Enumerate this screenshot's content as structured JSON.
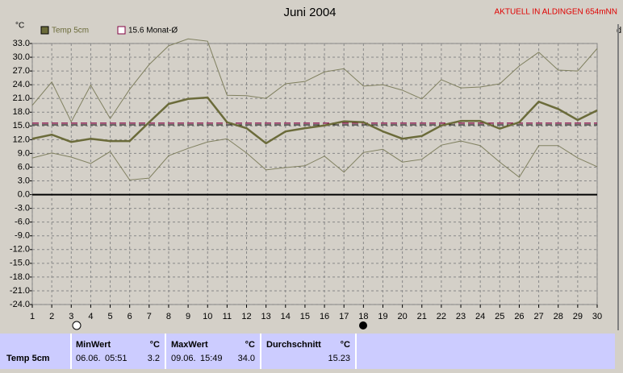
{
  "chart_data": {
    "type": "line",
    "title": "Juni 2004",
    "subtitle": "AKTUELL IN ALDINGEN 654mNN",
    "y_label": "°C",
    "corner_label": "d",
    "x": [
      1,
      2,
      3,
      4,
      5,
      6,
      7,
      8,
      9,
      10,
      11,
      12,
      13,
      14,
      15,
      16,
      17,
      18,
      19,
      20,
      21,
      22,
      23,
      24,
      25,
      26,
      27,
      28,
      29,
      30
    ],
    "xlim": [
      1,
      30
    ],
    "xticks": [
      1,
      2,
      3,
      4,
      5,
      6,
      7,
      8,
      9,
      10,
      11,
      12,
      13,
      14,
      15,
      16,
      17,
      18,
      19,
      20,
      21,
      22,
      23,
      24,
      25,
      26,
      27,
      28,
      29,
      30
    ],
    "ylim": [
      -24,
      33
    ],
    "yticks": [
      {
        "value": 33,
        "label": "33.0"
      },
      {
        "value": 30,
        "label": "30.0"
      },
      {
        "value": 27,
        "label": "27.0"
      },
      {
        "value": 24,
        "label": "24.0"
      },
      {
        "value": 21,
        "label": "21.0"
      },
      {
        "value": 18,
        "label": "18.0"
      },
      {
        "value": 15,
        "label": "15.0"
      },
      {
        "value": 12,
        "label": "12.0"
      },
      {
        "value": 9,
        "label": "9.0"
      },
      {
        "value": 6,
        "label": "6.0"
      },
      {
        "value": 3,
        "label": "3.0"
      },
      {
        "value": 0,
        "label": "0.0"
      },
      {
        "value": -3,
        "label": "-3.0"
      },
      {
        "value": -6,
        "label": "-6.0"
      },
      {
        "value": -9,
        "label": "-9.0"
      },
      {
        "value": -12,
        "label": "-12.0"
      },
      {
        "value": -15,
        "label": "-15.0"
      },
      {
        "value": -18,
        "label": "-18.0"
      },
      {
        "value": -21,
        "label": "-21.0"
      },
      {
        "value": -24,
        "label": "-24.0"
      }
    ],
    "grid": true,
    "series": [
      {
        "name": "Temp 5cm",
        "color": "#6b6b3a",
        "width": 2.5,
        "values": [
          12.2,
          13.1,
          11.5,
          12.2,
          11.7,
          11.7,
          15.8,
          19.8,
          20.9,
          21.2,
          15.8,
          14.5,
          11.2,
          13.8,
          14.5,
          15.1,
          16.0,
          15.8,
          13.8,
          12.2,
          12.8,
          15.1,
          16.1,
          16.1,
          14.4,
          15.8,
          20.3,
          18.7,
          16.3,
          18.4
        ]
      },
      {
        "color": "#808060",
        "width": 1,
        "values": [
          19.5,
          24.6,
          15.9,
          23.9,
          16.6,
          23.0,
          28.4,
          32.5,
          34.0,
          33.5,
          21.7,
          21.6,
          21.0,
          24.2,
          24.7,
          26.8,
          27.5,
          23.7,
          24.0,
          22.8,
          20.9,
          25.1,
          23.3,
          23.5,
          24.2,
          28.1,
          31.1,
          27.2,
          27.0,
          31.9
        ]
      },
      {
        "color": "#808060",
        "width": 1,
        "values": [
          8.0,
          9.1,
          8.2,
          6.8,
          9.4,
          3.2,
          3.6,
          8.5,
          10.1,
          11.5,
          12.2,
          9.1,
          5.4,
          5.9,
          6.3,
          8.4,
          4.9,
          9.2,
          9.9,
          7.1,
          7.7,
          10.8,
          11.7,
          10.7,
          7.1,
          3.8,
          10.7,
          10.7,
          8.0,
          6.1
        ]
      }
    ],
    "reference_line": {
      "label": "15.6 Monat-Ø",
      "value": 15.6,
      "color": "#800040"
    }
  },
  "stats": {
    "row_label": "Temp 5cm",
    "min": {
      "title": "MinWert",
      "unit": "°C",
      "date": "06.06.",
      "time": "05:51",
      "value": "3.2"
    },
    "max": {
      "title": "MaxWert",
      "unit": "°C",
      "date": "09.06.",
      "time": "15:49",
      "value": "34.0"
    },
    "avg": {
      "title": "Durchschnitt",
      "unit": "°C",
      "value": "15.23"
    }
  }
}
